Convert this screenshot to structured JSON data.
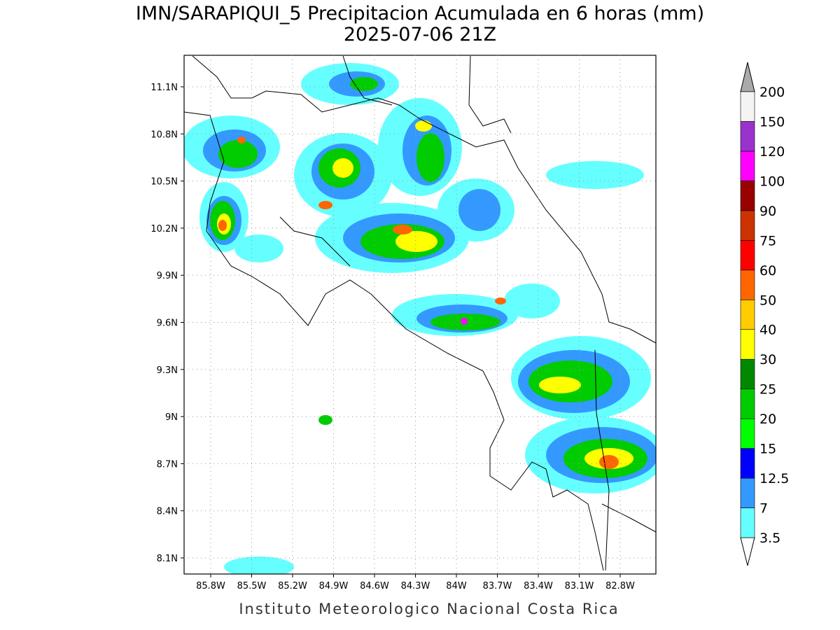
{
  "header": {
    "title": "IMN/SARAPIQUI_5 Precipitacion Acumulada en 6 horas (mm)",
    "subtitle": "2025-07-06 21Z"
  },
  "map": {
    "lat_ticks": [
      "11.1N",
      "10.8N",
      "10.5N",
      "10.2N",
      "9.9N",
      "9.6N",
      "9.3N",
      "9N",
      "8.7N",
      "8.4N",
      "8.1N"
    ],
    "lon_ticks": [
      "85.8W",
      "85.5W",
      "85.2W",
      "84.9W",
      "84.6W",
      "84.3W",
      "84W",
      "83.7W",
      "83.4W",
      "83.1W",
      "82.8W"
    ]
  },
  "colorbar": {
    "labels": [
      "3.5",
      "7",
      "12.5",
      "15",
      "20",
      "25",
      "30",
      "40",
      "50",
      "60",
      "75",
      "90",
      "100",
      "120",
      "150",
      "200"
    ],
    "colors": [
      "#66ffff",
      "#3399ff",
      "#0000ff",
      "#00ff00",
      "#00cc00",
      "#008800",
      "#ffff00",
      "#ffcc00",
      "#ff6600",
      "#ff0000",
      "#cc3300",
      "#990000",
      "#ff00ff",
      "#9933cc",
      "#f4f4f4"
    ],
    "under_color": "#ffffff",
    "over_color": "#aaaaaa"
  },
  "footer": "Instituto Meteorologico Nacional Costa Rica"
}
